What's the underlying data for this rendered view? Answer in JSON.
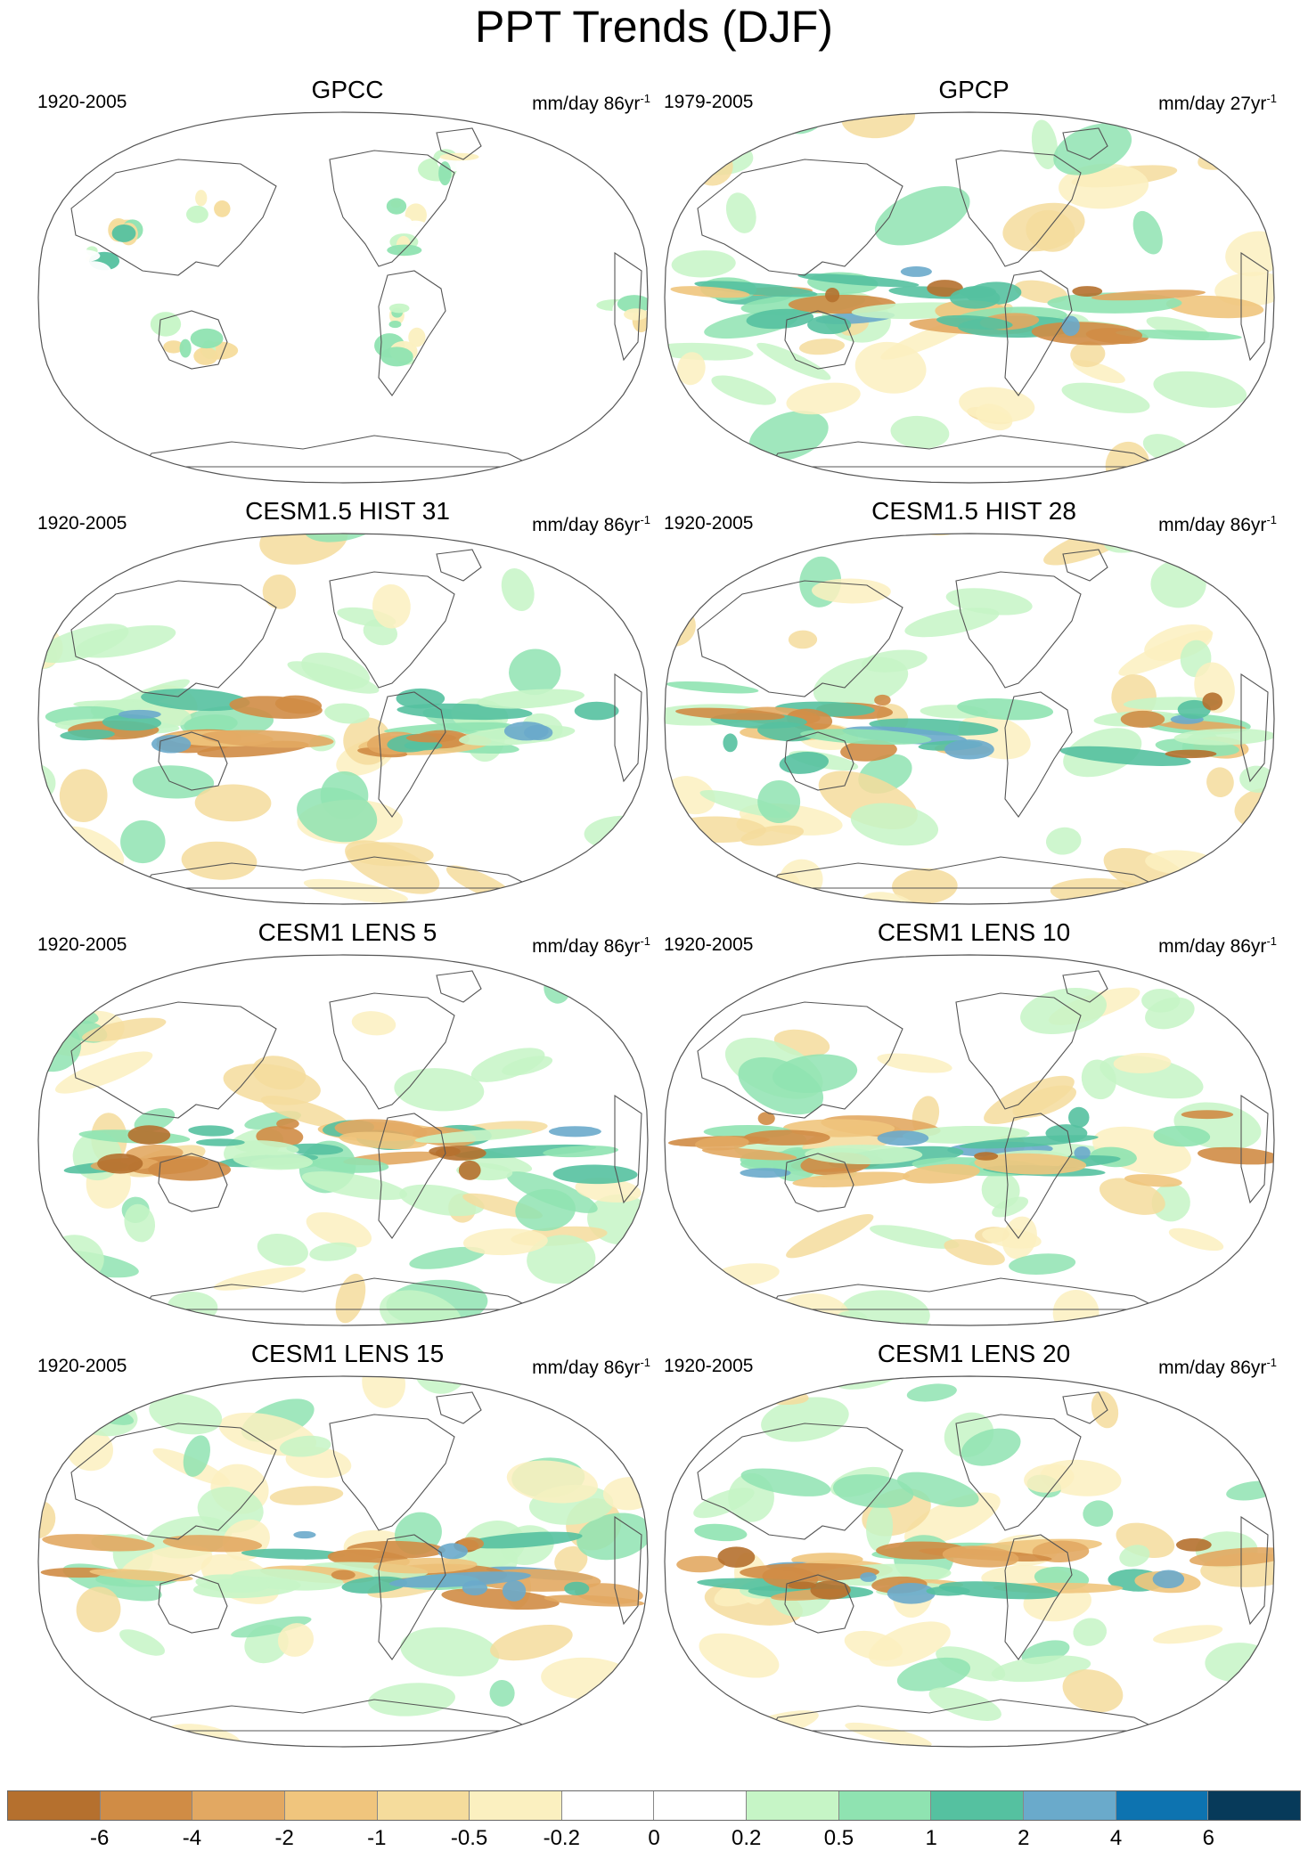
{
  "title": "PPT Trends (DJF)",
  "chart_data": {
    "type": "heatmap",
    "title": "PPT Trends (DJF)",
    "projection": "Robinson, Pacific-centered",
    "panels": [
      {
        "title": "GPCC",
        "period": "1920-2005",
        "units": "mm/day 86yr",
        "units_exp": "-1",
        "coverage": "land",
        "seed": 11
      },
      {
        "title": "GPCP",
        "period": "1979-2005",
        "units": "mm/day 27yr",
        "units_exp": "-1",
        "coverage": "global",
        "seed": 23
      },
      {
        "title": "CESM1.5 HIST 31",
        "period": "1920-2005",
        "units": "mm/day 86yr",
        "units_exp": "-1",
        "coverage": "global",
        "seed": 37
      },
      {
        "title": "CESM1.5 HIST 28",
        "period": "1920-2005",
        "units": "mm/day 86yr",
        "units_exp": "-1",
        "coverage": "global",
        "seed": 41
      },
      {
        "title": "CESM1 LENS 5",
        "period": "1920-2005",
        "units": "mm/day 86yr",
        "units_exp": "-1",
        "coverage": "global",
        "seed": 53
      },
      {
        "title": "CESM1 LENS 10",
        "period": "1920-2005",
        "units": "mm/day 86yr",
        "units_exp": "-1",
        "coverage": "global",
        "seed": 67
      },
      {
        "title": "CESM1 LENS 15",
        "period": "1920-2005",
        "units": "mm/day 86yr",
        "units_exp": "-1",
        "coverage": "global",
        "seed": 71
      },
      {
        "title": "CESM1 LENS 20",
        "period": "1920-2005",
        "units": "mm/day 86yr",
        "units_exp": "-1",
        "coverage": "global",
        "seed": 89
      }
    ],
    "colorbar": {
      "levels": [
        "-6",
        "-4",
        "-2",
        "-1",
        "-0.5",
        "-0.2",
        "0",
        "0.2",
        "0.5",
        "1",
        "2",
        "4",
        "6"
      ],
      "colors": [
        "#b5702e",
        "#d08c45",
        "#e2a862",
        "#f0c57d",
        "#f5dc9c",
        "#fbf0c0",
        "#ffffff",
        "#ffffff",
        "#c6f5c6",
        "#8fe3b1",
        "#55c1a0",
        "#6aaacb",
        "#0d73b0",
        "#073a5a"
      ]
    }
  }
}
